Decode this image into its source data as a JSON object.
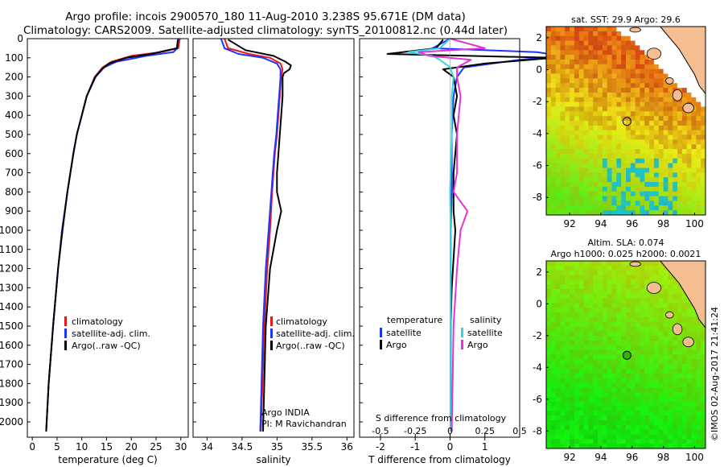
{
  "header": {
    "line1": "Argo profile: incois 2900570_180 11-Aug-2010 3.238S 95.671E (DM data)",
    "line2": "Climatology: CARS2009. Satellite-adjusted climatology: synTS_20100812.nc (0.44d later)"
  },
  "side_stamp": "©IMOS 02-Aug-2017 21:41:24",
  "colors": {
    "climatology": "#e41a1c",
    "satellite": "#1f33ff",
    "argo": "#000000",
    "sat_salinity": "#31d7e8",
    "argo_salinity": "#e433d6",
    "land": "#f5be90"
  },
  "chart_data": [
    {
      "type": "line",
      "name": "temperature-profile",
      "xlabel": "temperature (deg C)",
      "xlim": [
        -1,
        31.5
      ],
      "ylim": [
        2080,
        0
      ],
      "xticks": [
        0,
        5,
        10,
        15,
        20,
        25,
        30
      ],
      "yticks": [
        0,
        100,
        200,
        300,
        400,
        500,
        600,
        700,
        800,
        900,
        1000,
        1100,
        1200,
        1300,
        1400,
        1500,
        1600,
        1700,
        1800,
        1900,
        2000
      ],
      "legend": [
        "climatology",
        "satellite-adj. clim.",
        "Argo(..raw -QC)"
      ],
      "series": [
        {
          "name": "climatology",
          "color": "#e41a1c",
          "depth": [
            0,
            50,
            70,
            90,
            120,
            150,
            200,
            300,
            400,
            500,
            600,
            700,
            800,
            1000,
            1200,
            1500,
            1800,
            2050
          ],
          "values": [
            29.8,
            29.5,
            26,
            20,
            16,
            14.2,
            12.6,
            11,
            10,
            9,
            8.3,
            7.7,
            7.1,
            6,
            5.2,
            4.2,
            3.3,
            2.8
          ]
        },
        {
          "name": "satellite-adj. clim.",
          "color": "#1f33ff",
          "depth": [
            0,
            50,
            70,
            90,
            120,
            150,
            200,
            300,
            400,
            500,
            600,
            700,
            800,
            1000,
            1200,
            1500,
            1800,
            2050
          ],
          "values": [
            29.5,
            29.3,
            28.5,
            23,
            17,
            14.5,
            12.8,
            11,
            10,
            9,
            8.3,
            7.7,
            7.1,
            6,
            5.2,
            4.2,
            3.3,
            2.8
          ]
        },
        {
          "name": "Argo(..raw -QC)",
          "color": "#000000",
          "depth": [
            5,
            50,
            80,
            100,
            130,
            160,
            200,
            300,
            400,
            500,
            600,
            700,
            800,
            1000,
            1200,
            1500,
            1800,
            2050
          ],
          "values": [
            29.4,
            29.2,
            24,
            19,
            15.5,
            14,
            12.7,
            11,
            10,
            9,
            8.3,
            7.7,
            7.1,
            6.1,
            5.2,
            4.2,
            3.3,
            2.8
          ]
        }
      ]
    },
    {
      "type": "line",
      "name": "salinity-profile",
      "xlabel": "salinity",
      "xlim": [
        33.8,
        36.1
      ],
      "ylim": [
        2080,
        0
      ],
      "xticks": [
        34,
        34.5,
        35,
        35.5,
        36
      ],
      "legend": [
        "climatology",
        "satellite-adj. clim.",
        "Argo(..raw -QC)"
      ],
      "annotation": [
        "Argo INDIA",
        "PI: M Ravichandran"
      ],
      "series": [
        {
          "name": "climatology",
          "color": "#e41a1c",
          "depth": [
            0,
            50,
            80,
            100,
            130,
            160,
            200,
            300,
            400,
            500,
            600,
            700,
            800,
            1000,
            1200,
            1500,
            2050
          ],
          "values": [
            34.25,
            34.3,
            34.6,
            34.9,
            35.05,
            35.08,
            35.06,
            35.04,
            35.02,
            35.0,
            34.97,
            34.95,
            34.93,
            34.9,
            34.86,
            34.82,
            34.77
          ]
        },
        {
          "name": "satellite-adj. clim.",
          "color": "#1f33ff",
          "depth": [
            0,
            50,
            80,
            100,
            130,
            160,
            200,
            300,
            400,
            500,
            600,
            700,
            800,
            1000,
            1200,
            1500,
            2050
          ],
          "values": [
            34.2,
            34.25,
            34.45,
            34.8,
            35.0,
            35.05,
            35.05,
            35.03,
            35.01,
            34.99,
            34.96,
            34.94,
            34.92,
            34.88,
            34.84,
            34.8,
            34.76
          ]
        },
        {
          "name": "Argo(..raw -QC)",
          "color": "#000000",
          "depth": [
            5,
            60,
            90,
            120,
            140,
            160,
            180,
            200,
            300,
            400,
            500,
            600,
            700,
            800,
            900,
            1000,
            1200,
            1500,
            2050
          ],
          "values": [
            34.3,
            34.55,
            34.95,
            35.12,
            35.2,
            35.18,
            35.1,
            35.08,
            35.08,
            35.06,
            35.04,
            35.02,
            35.0,
            35.0,
            35.06,
            35.0,
            34.9,
            34.84,
            34.8
          ]
        }
      ]
    },
    {
      "type": "line",
      "name": "difference-profile",
      "xlabel": "T difference from climatology",
      "xlabel_top": "S difference from climatology",
      "xlim": [
        -2.6,
        2.0
      ],
      "xticks": [
        -2,
        -1,
        0,
        1
      ],
      "sticks": [
        [
          "-0.5",
          -2
        ],
        [
          "-0.25",
          -1
        ],
        [
          "0",
          0
        ],
        [
          "0.25",
          1
        ],
        [
          "0.5",
          2
        ]
      ],
      "legend_titles": [
        "temperature",
        "salinity"
      ],
      "legend": [
        "satellite",
        "Argo",
        "satellite",
        "Argo"
      ],
      "series": [
        {
          "name": "T satellite",
          "color": "#1f33ff",
          "depth": [
            0,
            50,
            70,
            90,
            110,
            150,
            200,
            300,
            500,
            800,
            1000,
            1500,
            2050
          ],
          "values": [
            0,
            -0.5,
            2.5,
            3.2,
            2.0,
            0.4,
            0.2,
            0.1,
            0.05,
            0.05,
            0.02,
            0.02,
            0.02
          ]
        },
        {
          "name": "T Argo",
          "color": "#000000",
          "depth": [
            5,
            50,
            80,
            100,
            130,
            160,
            200,
            300,
            400,
            500,
            700,
            900,
            1000,
            1300,
            1500,
            2050
          ],
          "values": [
            -0.2,
            -0.4,
            -1.8,
            3.0,
            1.0,
            -0.2,
            0.1,
            0.2,
            0.1,
            0.2,
            0.1,
            0.1,
            0.15,
            0.05,
            0.02,
            0.02
          ]
        },
        {
          "name": "S satellite",
          "color": "#31d7e8",
          "depth": [
            0,
            50,
            70,
            90,
            110,
            150,
            200,
            300,
            500,
            800,
            1000,
            1500,
            2050
          ],
          "values": [
            0,
            -0.3,
            -1.2,
            -0.5,
            -0.3,
            0,
            0.1,
            0.05,
            0.05,
            0,
            0.02,
            0.02,
            0.02
          ]
        },
        {
          "name": "S Argo",
          "color": "#e433d6",
          "depth": [
            0,
            50,
            70,
            90,
            110,
            150,
            200,
            300,
            500,
            700,
            800,
            900,
            1000,
            1200,
            1500,
            2050
          ],
          "values": [
            0,
            1.0,
            -0.9,
            -0.6,
            0.6,
            0.2,
            0.2,
            0.3,
            0.2,
            0.2,
            0.1,
            0.5,
            0.3,
            0.2,
            0.1,
            0.05
          ]
        }
      ]
    },
    {
      "type": "heatmap",
      "name": "sst-map",
      "title": "sat. SST: 29.9 Argo: 29.6",
      "xlim": [
        90.5,
        100.7
      ],
      "ylim": [
        -9.1,
        2.7
      ],
      "xticks": [
        92,
        94,
        96,
        98,
        100
      ],
      "yticks": [
        -8,
        -6,
        -4,
        -2,
        0,
        2
      ],
      "marker": {
        "lon": 95.67,
        "lat": -3.24,
        "fill": "none"
      }
    },
    {
      "type": "heatmap",
      "name": "sla-map",
      "title": [
        "Altim. SLA: 0.074",
        "Argo h1000: 0.025 h2000: 0.0021"
      ],
      "xlim": [
        90.5,
        100.7
      ],
      "ylim": [
        -9.1,
        2.7
      ],
      "xticks": [
        92,
        94,
        96,
        98,
        100
      ],
      "yticks": [
        -8,
        -6,
        -4,
        -2,
        0,
        2
      ],
      "marker": {
        "lon": 95.67,
        "lat": -3.24,
        "fill": "#38b000"
      }
    }
  ]
}
